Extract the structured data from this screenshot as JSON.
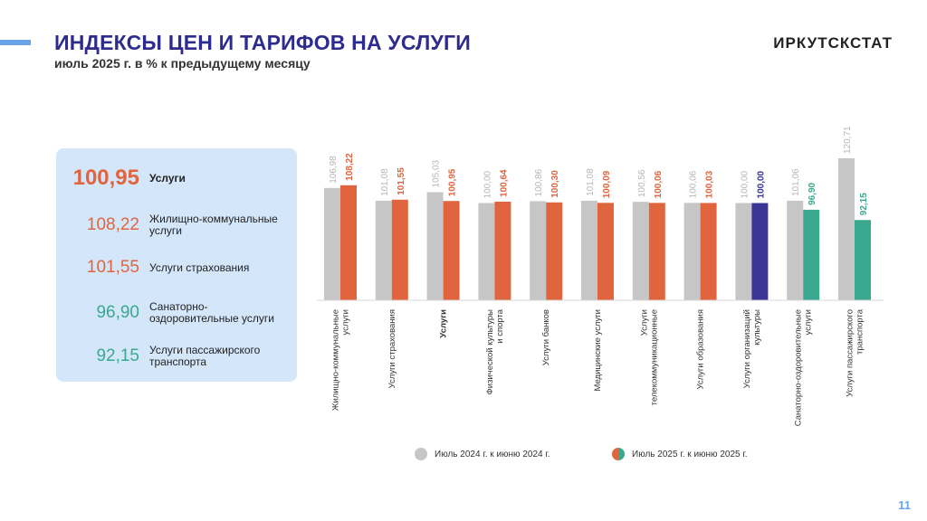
{
  "header": {
    "title": "ИНДЕКСЫ ЦЕН И ТАРИФОВ НА УСЛУГИ",
    "subtitle": "июль 2025 г. в % к предыдущему месяцу",
    "brand": "ИРКУТСКСТАТ"
  },
  "highlights": [
    {
      "value": "100,95",
      "label": "Услуги",
      "color": "#e0653f"
    },
    {
      "value": "108,22",
      "label": "Жилищно-коммунальные услуги",
      "color": "#e0653f"
    },
    {
      "value": "101,55",
      "label": "Услуги страхования",
      "color": "#e0653f"
    },
    {
      "value": "96,90",
      "label": "Санаторно-оздоровительные услуги",
      "color": "#3aa88e"
    },
    {
      "value": "92,15",
      "label": "Услуги пассажирского транспорта",
      "color": "#3aa88e"
    }
  ],
  "chart_data": {
    "type": "bar",
    "categories": [
      "Жилищно-коммунальные услуги",
      "Услуги страхования",
      "Услуги",
      "Физической культуры и спорта",
      "Услуги банков",
      "Медицинские услуги",
      "Услуги телекоммуникационные",
      "Услуги образования",
      "Услуги организаций культуры",
      "Санаторно-оздоровительные услуги",
      "Услуги пассажирского транспорта"
    ],
    "category_bold": [
      false,
      false,
      true,
      false,
      false,
      false,
      false,
      false,
      false,
      false,
      false
    ],
    "series": [
      {
        "name": "Июль 2024 г. к июню 2024 г.",
        "values": [
          106.98,
          101.08,
          105.03,
          100.0,
          100.86,
          101.08,
          100.56,
          100.06,
          100.0,
          101.06,
          120.71
        ],
        "labels": [
          "106,98",
          "101,08",
          "105,03",
          "100,00",
          "100,86",
          "101,08",
          "100,56",
          "100,06",
          "100,00",
          "101,06",
          "120,71"
        ],
        "color": "#c6c6c6"
      },
      {
        "name": "Июль 2025 г. к июню 2025 г.",
        "values": [
          108.22,
          101.55,
          100.95,
          100.64,
          100.3,
          100.09,
          100.06,
          100.03,
          100.0,
          96.9,
          92.15
        ],
        "labels": [
          "108,22",
          "101,55",
          "100,95",
          "100,64",
          "100,30",
          "100,09",
          "100,06",
          "100,03",
          "100,00",
          "96,90",
          "92,15"
        ],
        "colors": [
          "#e0653f",
          "#e0653f",
          "#e0653f",
          "#e0653f",
          "#e0653f",
          "#e0653f",
          "#e0653f",
          "#e0653f",
          "#3b3595",
          "#3aa88e",
          "#3aa88e"
        ]
      }
    ],
    "legend_colors": [
      "#c6c6c6",
      "#e0653f",
      "#3aa88e"
    ]
  },
  "page_number": "11"
}
